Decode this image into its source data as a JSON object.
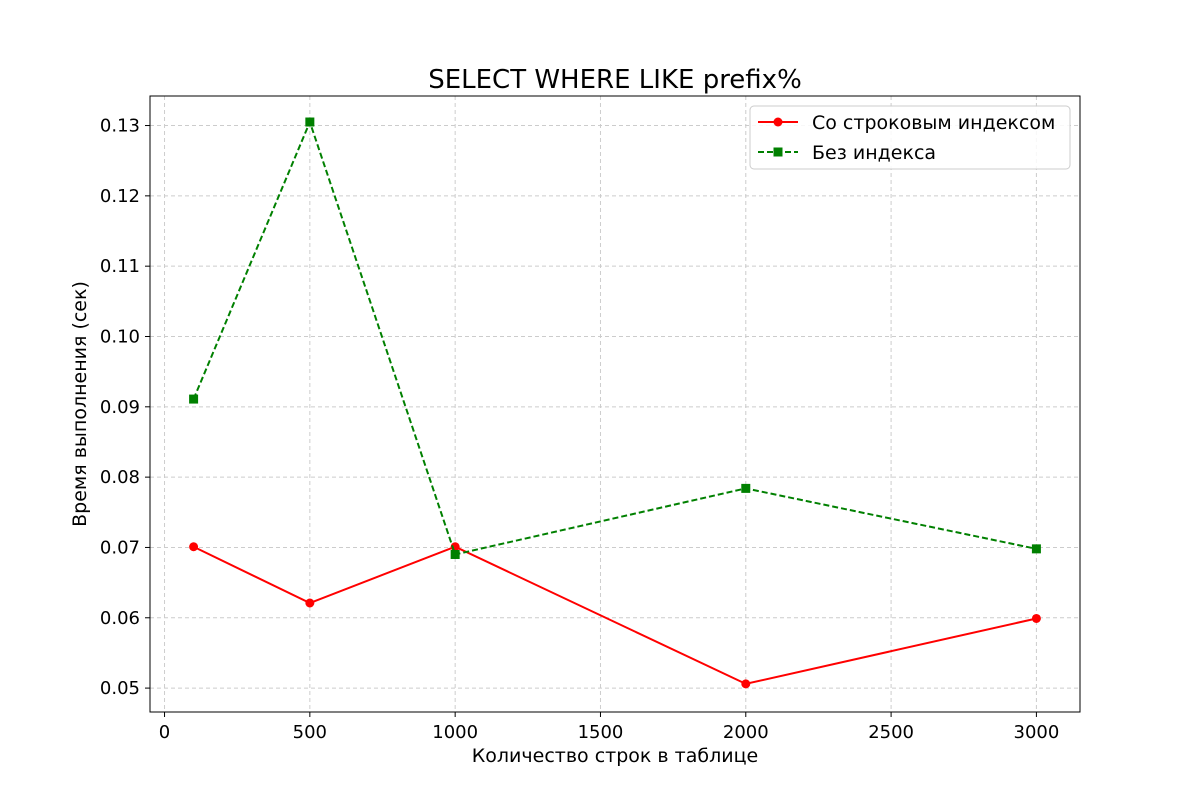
{
  "chart_data": {
    "type": "line",
    "title": "SELECT WHERE LIKE prefix%",
    "xlabel": "Количество строк в таблице",
    "ylabel": "Время выполнения (сек)",
    "x": [
      100,
      500,
      1000,
      2000,
      3000
    ],
    "xlim": [
      -50,
      3150
    ],
    "ylim": [
      0.0466,
      0.1342
    ],
    "xticks": [
      0,
      500,
      1000,
      1500,
      2000,
      2500,
      3000
    ],
    "yticks": [
      0.05,
      0.06,
      0.07,
      0.08,
      0.09,
      0.1,
      0.11,
      0.12,
      0.13
    ],
    "ytick_labels": [
      "0.05",
      "0.06",
      "0.07",
      "0.08",
      "0.09",
      "0.10",
      "0.11",
      "0.12",
      "0.13"
    ],
    "grid": true,
    "legend_position": "top-right",
    "series": [
      {
        "name": "Со строковым индексом",
        "values": [
          0.0701,
          0.0621,
          0.0701,
          0.0506,
          0.0599
        ],
        "color": "#ff0000",
        "marker": "circle",
        "linestyle": "solid"
      },
      {
        "name": "Без индекса",
        "values": [
          0.0911,
          0.1305,
          0.069,
          0.0784,
          0.0698
        ],
        "color": "#008000",
        "marker": "square",
        "linestyle": "dashed"
      }
    ]
  }
}
